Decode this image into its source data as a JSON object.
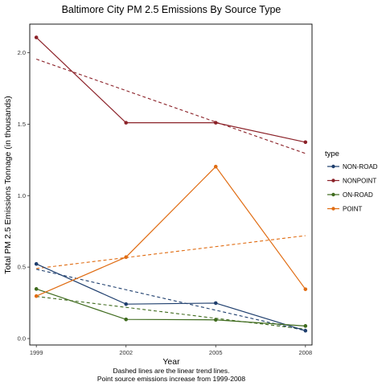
{
  "chart_data": {
    "type": "line",
    "title": "Baltimore City PM 2.5 Emissions By Source Type",
    "xlabel": "Year",
    "ylabel": "Total PM 2.5 Emissions Tonnage (in thousands)",
    "caption": [
      "Dashed lines are the linear trend lines.",
      "Point source emissions increase from 1999-2008"
    ],
    "x": [
      1999,
      2002,
      2005,
      2008
    ],
    "xlim": [
      1998.78,
      2008.22
    ],
    "ylim": [
      -0.045,
      2.2
    ],
    "yticks": [
      0.0,
      0.5,
      1.0,
      1.5,
      2.0
    ],
    "ytick_labels": [
      "0.0",
      "0.5",
      "1.0",
      "1.5",
      "2.0"
    ],
    "xtick_labels": [
      "1999",
      "2002",
      "2005",
      "2008"
    ],
    "legend": {
      "title": "type",
      "position": "right"
    },
    "grid": false,
    "series": [
      {
        "name": "NON-ROAD",
        "color": "#1f3f6e",
        "values": [
          0.522,
          0.241,
          0.248,
          0.055
        ],
        "trend": [
          0.485,
          0.055
        ]
      },
      {
        "name": "NONPOINT",
        "color": "#8b2128",
        "values": [
          2.107,
          1.51,
          1.51,
          1.374
        ],
        "trend": [
          1.955,
          1.295
        ]
      },
      {
        "name": "ON-ROAD",
        "color": "#3f6b1e",
        "values": [
          0.347,
          0.134,
          0.131,
          0.088
        ],
        "trend": [
          0.295,
          0.065
        ]
      },
      {
        "name": "POINT",
        "color": "#e06c12",
        "values": [
          0.297,
          0.57,
          1.203,
          0.345
        ],
        "trend": [
          0.49,
          0.72
        ]
      }
    ]
  }
}
